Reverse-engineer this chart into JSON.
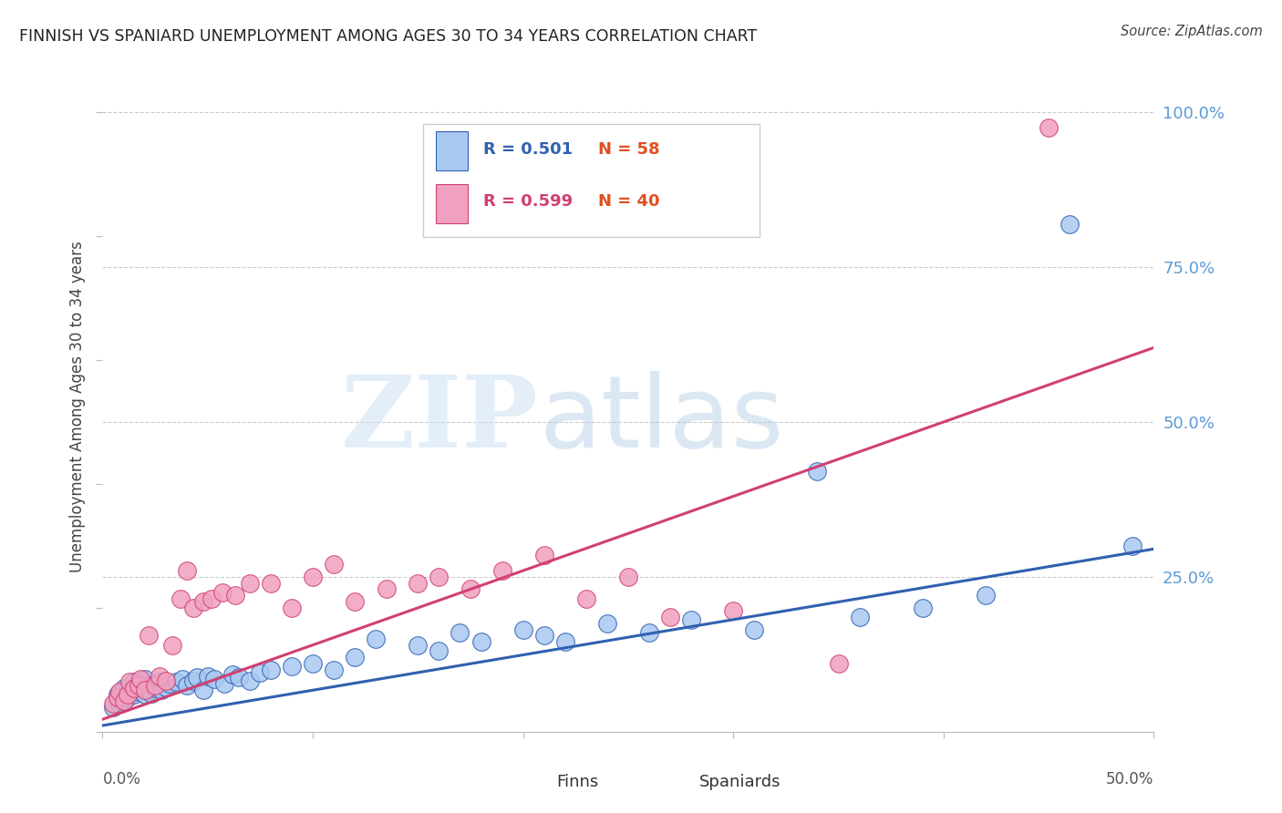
{
  "title": "FINNISH VS SPANIARD UNEMPLOYMENT AMONG AGES 30 TO 34 YEARS CORRELATION CHART",
  "source": "Source: ZipAtlas.com",
  "ylabel": "Unemployment Among Ages 30 to 34 years",
  "xlim": [
    0.0,
    0.5
  ],
  "ylim": [
    0.0,
    1.05
  ],
  "finn_color": "#a8c8f0",
  "finn_color_dark": "#3060b0",
  "spaniard_color": "#f0a0c0",
  "spaniard_color_dark": "#d04070",
  "legend_r_finn": "0.501",
  "legend_n_finn": "58",
  "legend_r_span": "0.599",
  "legend_n_span": "40",
  "watermark_zip": "ZIP",
  "watermark_atlas": "atlas",
  "background_color": "#ffffff",
  "finn_line_x": [
    0.0,
    0.5
  ],
  "finn_line_y": [
    0.01,
    0.295
  ],
  "span_line_x": [
    0.0,
    0.5
  ],
  "span_line_y": [
    0.02,
    0.62
  ],
  "finn_scatter_x": [
    0.005,
    0.007,
    0.008,
    0.01,
    0.01,
    0.012,
    0.013,
    0.015,
    0.015,
    0.017,
    0.018,
    0.019,
    0.02,
    0.02,
    0.021,
    0.022,
    0.023,
    0.025,
    0.027,
    0.028,
    0.03,
    0.032,
    0.035,
    0.038,
    0.04,
    0.043,
    0.045,
    0.048,
    0.05,
    0.053,
    0.058,
    0.062,
    0.065,
    0.07,
    0.075,
    0.08,
    0.09,
    0.1,
    0.11,
    0.12,
    0.13,
    0.15,
    0.16,
    0.17,
    0.18,
    0.2,
    0.21,
    0.22,
    0.24,
    0.26,
    0.28,
    0.31,
    0.34,
    0.36,
    0.39,
    0.42,
    0.46,
    0.49
  ],
  "finn_scatter_y": [
    0.04,
    0.06,
    0.045,
    0.05,
    0.07,
    0.055,
    0.065,
    0.06,
    0.08,
    0.065,
    0.075,
    0.07,
    0.06,
    0.085,
    0.068,
    0.075,
    0.062,
    0.07,
    0.08,
    0.068,
    0.072,
    0.078,
    0.08,
    0.085,
    0.075,
    0.082,
    0.088,
    0.068,
    0.09,
    0.085,
    0.078,
    0.092,
    0.088,
    0.082,
    0.095,
    0.1,
    0.105,
    0.11,
    0.1,
    0.12,
    0.15,
    0.14,
    0.13,
    0.16,
    0.145,
    0.165,
    0.155,
    0.145,
    0.175,
    0.16,
    0.18,
    0.165,
    0.42,
    0.185,
    0.2,
    0.22,
    0.82,
    0.3
  ],
  "spaniard_scatter_x": [
    0.005,
    0.007,
    0.008,
    0.01,
    0.012,
    0.013,
    0.015,
    0.017,
    0.018,
    0.02,
    0.022,
    0.025,
    0.027,
    0.03,
    0.033,
    0.037,
    0.04,
    0.043,
    0.048,
    0.052,
    0.057,
    0.063,
    0.07,
    0.08,
    0.09,
    0.1,
    0.11,
    0.12,
    0.135,
    0.15,
    0.16,
    0.175,
    0.19,
    0.21,
    0.23,
    0.25,
    0.27,
    0.3,
    0.35,
    0.45
  ],
  "spaniard_scatter_y": [
    0.045,
    0.055,
    0.065,
    0.05,
    0.06,
    0.08,
    0.07,
    0.075,
    0.085,
    0.068,
    0.155,
    0.075,
    0.09,
    0.082,
    0.14,
    0.215,
    0.26,
    0.2,
    0.21,
    0.215,
    0.225,
    0.22,
    0.24,
    0.24,
    0.2,
    0.25,
    0.27,
    0.21,
    0.23,
    0.24,
    0.25,
    0.23,
    0.26,
    0.285,
    0.215,
    0.25,
    0.185,
    0.195,
    0.11,
    0.975
  ]
}
